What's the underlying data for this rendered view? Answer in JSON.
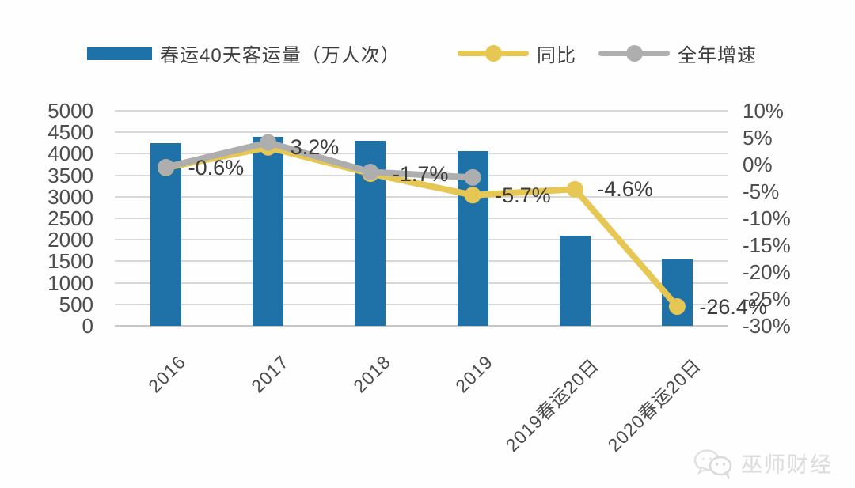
{
  "colors": {
    "bar": "#1f72a8",
    "yoy_line": "#e7c754",
    "annual_line": "#aeaeae",
    "grid": "#d8d8d8",
    "label_text": "#3c3c3c",
    "watermark": "#d7d7d7"
  },
  "legend": {
    "bar_label": "春运40天客运量（万人次）",
    "yoy_label": "同比",
    "annual_label": "全年增速"
  },
  "watermark": {
    "text": "巫师财经",
    "icon": "wechat-logo-icon"
  },
  "chart_data": {
    "type": "bar",
    "subtype": "combo bar + line, dual axis",
    "categories": [
      "2016",
      "2017",
      "2018",
      "2019",
      "2019春运20日",
      "2020春运20日"
    ],
    "series": [
      {
        "name": "春运40天客运量（万人次）",
        "type": "bar",
        "axis": "left",
        "values": [
          4250,
          4390,
          4300,
          4060,
          2090,
          1550
        ]
      },
      {
        "name": "同比",
        "type": "line",
        "axis": "right",
        "values": [
          -0.6,
          3.2,
          -1.7,
          -5.7,
          -4.6,
          -26.4
        ],
        "point_labels": [
          "-0.6%",
          "3.2%",
          "-1.7%",
          "-5.7%",
          "-4.6%",
          "-26.4%"
        ]
      },
      {
        "name": "全年增速",
        "type": "line",
        "axis": "right",
        "values": [
          -0.5,
          4.1,
          -1.4,
          -2.4,
          null,
          null
        ],
        "point_labels": [
          "",
          "",
          "",
          "",
          "",
          ""
        ]
      }
    ],
    "left_axis": {
      "min": 0,
      "max": 5000,
      "step": 500,
      "ticks": [
        "5000",
        "4500",
        "4000",
        "3500",
        "3000",
        "2500",
        "2000",
        "1500",
        "1000",
        "500",
        "0"
      ]
    },
    "right_axis": {
      "min": -30,
      "max": 10,
      "step": 5,
      "ticks": [
        "10%",
        "5%",
        "0%",
        "-5%",
        "-10%",
        "-15%",
        "-20%",
        "-25%",
        "-30%"
      ]
    },
    "grid": true,
    "legend_position": "top"
  }
}
